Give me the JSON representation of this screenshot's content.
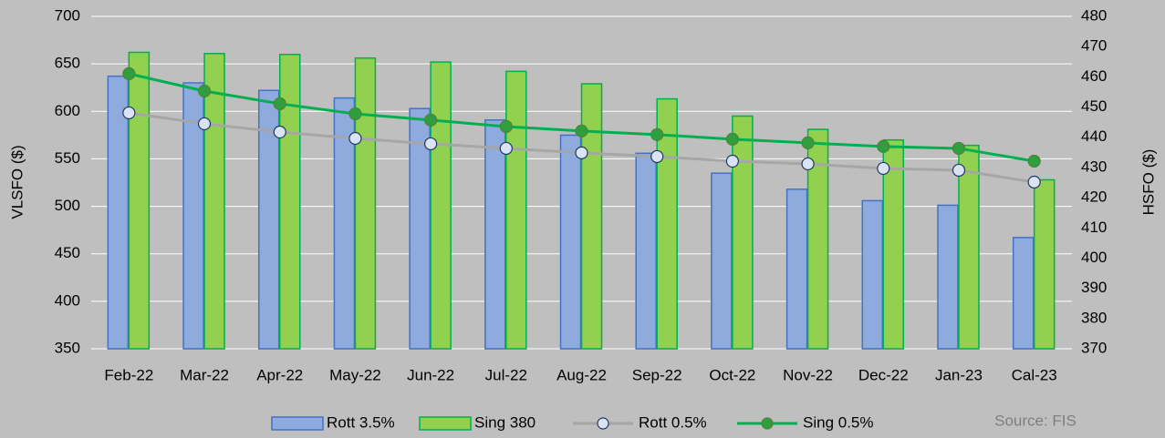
{
  "chart_data": {
    "type": "bar-line",
    "categories": [
      "Feb-22",
      "Mar-22",
      "Apr-22",
      "May-22",
      "Jun-22",
      "Jul-22",
      "Aug-22",
      "Sep-22",
      "Oct-22",
      "Nov-22",
      "Dec-22",
      "Jan-23",
      "Cal-23"
    ],
    "series": [
      {
        "name": "Rott 3.5%",
        "type": "bar",
        "axis": "y2",
        "color": "#8faadc",
        "edge": "#4472c4",
        "values": [
          460.2,
          458,
          455.5,
          453,
          449.5,
          445.7,
          440.7,
          434.7,
          428.1,
          422.8,
          419,
          417.5,
          406.8
        ]
      },
      {
        "name": "Sing 380",
        "type": "bar",
        "axis": "y2",
        "color": "#92d050",
        "edge": "#00b050",
        "values": [
          468.1,
          467.7,
          467.4,
          466.2,
          464.9,
          461.8,
          457.7,
          452.7,
          447,
          442.6,
          439.1,
          437.3,
          425.9
        ]
      },
      {
        "name": "Rott 0.5%",
        "type": "line",
        "axis": "y",
        "color": "#a6a6a6",
        "marker": "#dae3f3",
        "marker_edge": "#1f3864",
        "values": [
          598.4,
          586.9,
          578.2,
          571.5,
          565.8,
          561,
          556.3,
          552.4,
          547.5,
          544.7,
          539.9,
          538,
          525.5
        ]
      },
      {
        "name": "Sing 0.5%",
        "type": "line",
        "axis": "y",
        "color": "#00b050",
        "marker": "#2e9e3e",
        "marker_edge": "#548235",
        "values": [
          639.6,
          621.4,
          608,
          597.4,
          590.8,
          584,
          579.3,
          575.5,
          570.7,
          566.8,
          563,
          561,
          547.5
        ]
      }
    ],
    "y_label": "VLSFO ($)",
    "y2_label": "HSFO ($)",
    "ylim": [
      350,
      700
    ],
    "yticks": [
      350,
      400,
      450,
      500,
      550,
      600,
      650,
      700
    ],
    "y2lim": [
      370,
      480
    ],
    "y2ticks": [
      370,
      380,
      390,
      400,
      410,
      420,
      430,
      440,
      450,
      460,
      470,
      480
    ],
    "grid": true,
    "legend": "bottom",
    "source": "Source: FIS"
  }
}
